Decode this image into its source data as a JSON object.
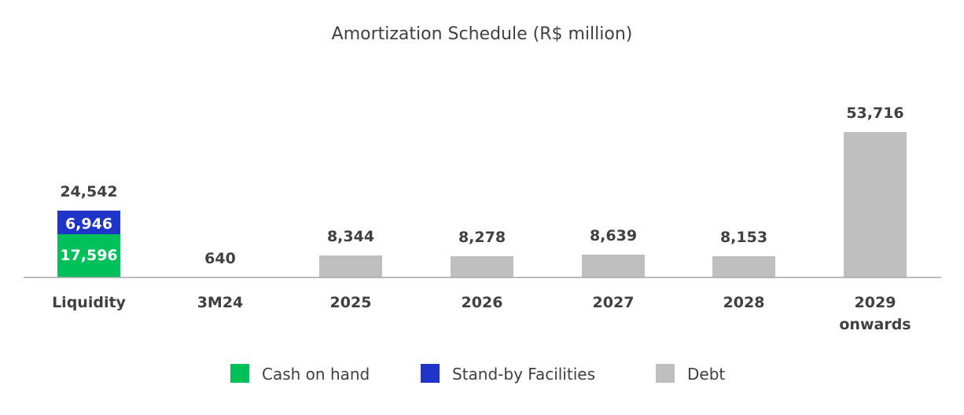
{
  "chart_data": {
    "type": "bar",
    "title": "Amortization Schedule (R$ million)",
    "categories": [
      "Liquidity",
      "3M24",
      "2025",
      "2026",
      "2027",
      "2028",
      "2029 onwards"
    ],
    "series": [
      {
        "name": "Cash on hand",
        "color": "#00c05a",
        "values": [
          17596,
          null,
          null,
          null,
          null,
          null,
          null
        ]
      },
      {
        "name": "Stand-by Facilities",
        "color": "#1f35c8",
        "values": [
          6946,
          null,
          null,
          null,
          null,
          null,
          null
        ]
      },
      {
        "name": "Debt",
        "color": "#bfbfbf",
        "values": [
          null,
          640,
          8344,
          8278,
          8639,
          8153,
          53716
        ]
      }
    ],
    "totals": [
      "24,542",
      "640",
      "8,344",
      "8,278",
      "8,639",
      "8,153",
      "53,716"
    ],
    "segment_labels": {
      "cash_on_hand": "17,596",
      "standby": "6,946"
    },
    "legend_position": "bottom",
    "grid": false
  }
}
